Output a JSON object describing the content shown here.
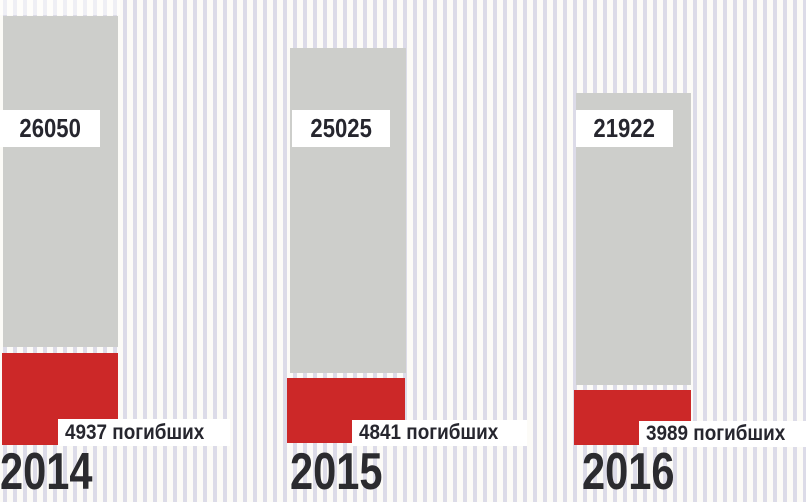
{
  "chart_data": {
    "type": "bar",
    "orientation": "vertical",
    "categories": [
      "2014",
      "2015",
      "2016"
    ],
    "series": [
      {
        "name": "",
        "color": "#cdcecb",
        "values": [
          26050,
          25025,
          21922
        ]
      },
      {
        "name": "погибших",
        "color": "#cc2828",
        "values": [
          4937,
          4841,
          3989
        ]
      }
    ],
    "labels": {
      "totals": [
        "26050",
        "25025",
        "21922"
      ],
      "deaths": [
        "4937 погибших",
        "4841 погибших",
        "3989 погибших"
      ]
    },
    "grid": "off",
    "legend_position": "none"
  },
  "colors": {
    "bar_total": "#cdcecb",
    "bar_deaths": "#cc2828",
    "text_dark": "#26262e",
    "year_text": "#2b2b2f",
    "stripe": "#dcdbe8",
    "background": "#fcfbf7",
    "label_chip": "#ffffff"
  }
}
